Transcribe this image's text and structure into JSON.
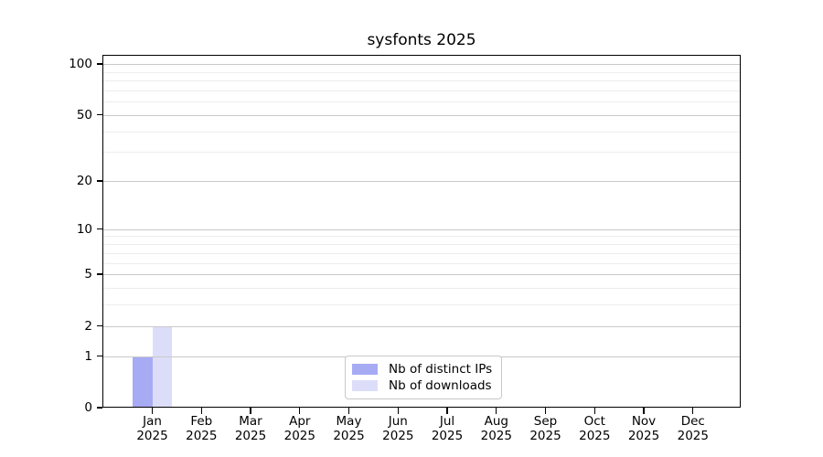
{
  "chart_data": {
    "type": "bar",
    "title": "sysfonts 2025",
    "months": [
      "Jan",
      "Feb",
      "Mar",
      "Apr",
      "May",
      "Jun",
      "Jul",
      "Aug",
      "Sep",
      "Oct",
      "Nov",
      "Dec"
    ],
    "year_label": "2025",
    "y_scale": "log1p",
    "ylim": [
      0,
      113.2
    ],
    "y_ticks": [
      0,
      1,
      2,
      5,
      10,
      20,
      50,
      100
    ],
    "y_minor_gridlines": [
      3,
      4,
      6,
      7,
      8,
      9,
      30,
      40,
      60,
      70,
      80,
      90
    ],
    "grid": true,
    "legend_position": "lower center",
    "series": [
      {
        "name": "Nb of distinct IPs",
        "color": "#a7abf4",
        "values": [
          1,
          0,
          0,
          0,
          0,
          0,
          0,
          0,
          0,
          0,
          0,
          0
        ]
      },
      {
        "name": "Nb of downloads",
        "color": "#dcdef9",
        "values": [
          2,
          0,
          0,
          0,
          0,
          0,
          0,
          0,
          0,
          0,
          0,
          0
        ]
      }
    ],
    "colors": {
      "major_gridline": "#c9c9c9",
      "minor_gridline": "#ededed",
      "axis": "#000000",
      "legend_border": "#c8c8c8"
    }
  }
}
